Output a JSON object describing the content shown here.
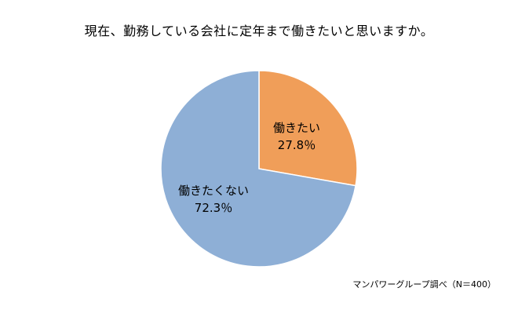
{
  "chart_data": {
    "type": "pie",
    "title": "現在、勤務している会社に定年まで働きたいと思いますか。",
    "slices": [
      {
        "label": "働きたい",
        "value": 27.8,
        "display": "27.8％",
        "color": "#F09E59"
      },
      {
        "label": "働きたくない",
        "value": 72.3,
        "display": "72.3％",
        "color": "#8EAFD6"
      }
    ],
    "source": "マンパワーグループ調べ（N＝400）"
  }
}
